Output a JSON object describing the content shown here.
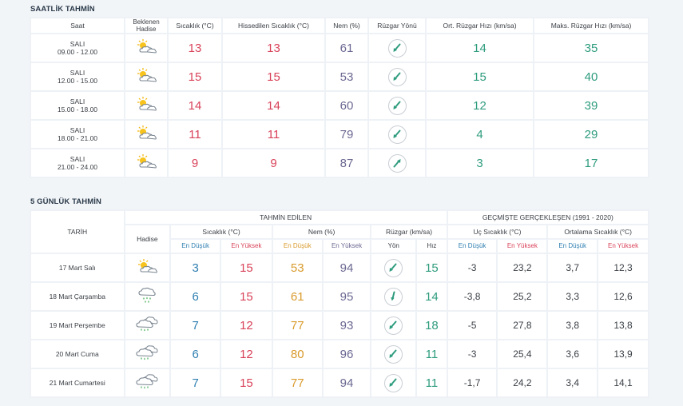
{
  "hourly": {
    "title": "SAATLİK TAHMİN",
    "headers": {
      "time": "Saat",
      "event": "Beklenen Hadise",
      "temp": "Sıcaklık (°C)",
      "feels": "Hissedilen Sıcaklık (°C)",
      "humidity": "Nem (%)",
      "wind_dir": "Rüzgar Yönü",
      "avg_wind": "Ort. Rüzgar Hızı (km/sa)",
      "max_wind": "Maks. Rüzgar Hızı (km/sa)"
    },
    "rows": [
      {
        "day": "SALI",
        "range": "09.00 - 12.00",
        "icon": "partly-cloudy-icon",
        "temp": "13",
        "feels": "13",
        "humidity": "61",
        "wind_dir": "southwest",
        "avg": "14",
        "max": "35"
      },
      {
        "day": "SALI",
        "range": "12.00 - 15.00",
        "icon": "partly-cloudy-icon",
        "temp": "15",
        "feels": "15",
        "humidity": "53",
        "wind_dir": "southwest",
        "avg": "15",
        "max": "40"
      },
      {
        "day": "SALI",
        "range": "15.00 - 18.00",
        "icon": "partly-cloudy-icon",
        "temp": "14",
        "feels": "14",
        "humidity": "60",
        "wind_dir": "southwest",
        "avg": "12",
        "max": "39"
      },
      {
        "day": "SALI",
        "range": "18.00 - 21.00",
        "icon": "partly-cloudy-icon",
        "temp": "11",
        "feels": "11",
        "humidity": "79",
        "wind_dir": "southwest",
        "avg": "4",
        "max": "29"
      },
      {
        "day": "SALI",
        "range": "21.00 - 24.00",
        "icon": "partly-cloudy-icon",
        "temp": "9",
        "feels": "9",
        "humidity": "87",
        "wind_dir": "northeast",
        "avg": "3",
        "max": "17"
      }
    ]
  },
  "daily": {
    "title": "5 GÜNLÜK TAHMİN",
    "headers": {
      "date": "TARİH",
      "forecast": "TAHMİN EDİLEN",
      "event": "Hadise",
      "temp": "Sıcaklık (°C)",
      "humidity": "Nem (%)",
      "wind": "Rüzgar (km/sa)",
      "history": "GEÇMİŞTE GERÇEKLEŞEN (1991 - 2020)",
      "extreme": "Uç Sıcaklık (°C)",
      "average": "Ortalama Sıcaklık (°C)",
      "min": "En Düşük",
      "max": "En Yüksek",
      "dir": "Yön",
      "speed": "Hız"
    },
    "rows": [
      {
        "date": "17 Mart Salı",
        "icon": "partly-cloudy-icon",
        "tmin": "3",
        "tmax": "15",
        "hmin": "53",
        "hmax": "94",
        "wind_dir": "southwest",
        "speed": "15",
        "xmin": "-3",
        "xmax": "23,2",
        "amin": "3,7",
        "amax": "12,3"
      },
      {
        "date": "18 Mart Çarşamba",
        "icon": "rain-icon",
        "tmin": "6",
        "tmax": "15",
        "hmin": "61",
        "hmax": "95",
        "wind_dir": "south",
        "speed": "14",
        "xmin": "-3,8",
        "xmax": "25,2",
        "amin": "3,3",
        "amax": "12,6"
      },
      {
        "date": "19 Mart Perşembe",
        "icon": "cloud-rain-icon",
        "tmin": "7",
        "tmax": "12",
        "hmin": "77",
        "hmax": "93",
        "wind_dir": "southwest",
        "speed": "18",
        "xmin": "-5",
        "xmax": "27,8",
        "amin": "3,8",
        "amax": "13,8"
      },
      {
        "date": "20 Mart Cuma",
        "icon": "cloud-rain-icon",
        "tmin": "6",
        "tmax": "12",
        "hmin": "80",
        "hmax": "96",
        "wind_dir": "southwest",
        "speed": "11",
        "xmin": "-3",
        "xmax": "25,4",
        "amin": "3,6",
        "amax": "13,9"
      },
      {
        "date": "21 Mart Cumartesi",
        "icon": "cloud-rain-icon",
        "tmin": "7",
        "tmax": "15",
        "hmin": "77",
        "hmax": "94",
        "wind_dir": "southwest",
        "speed": "11",
        "xmin": "-1,7",
        "xmax": "24,2",
        "amin": "3,4",
        "amax": "14,1"
      }
    ]
  }
}
